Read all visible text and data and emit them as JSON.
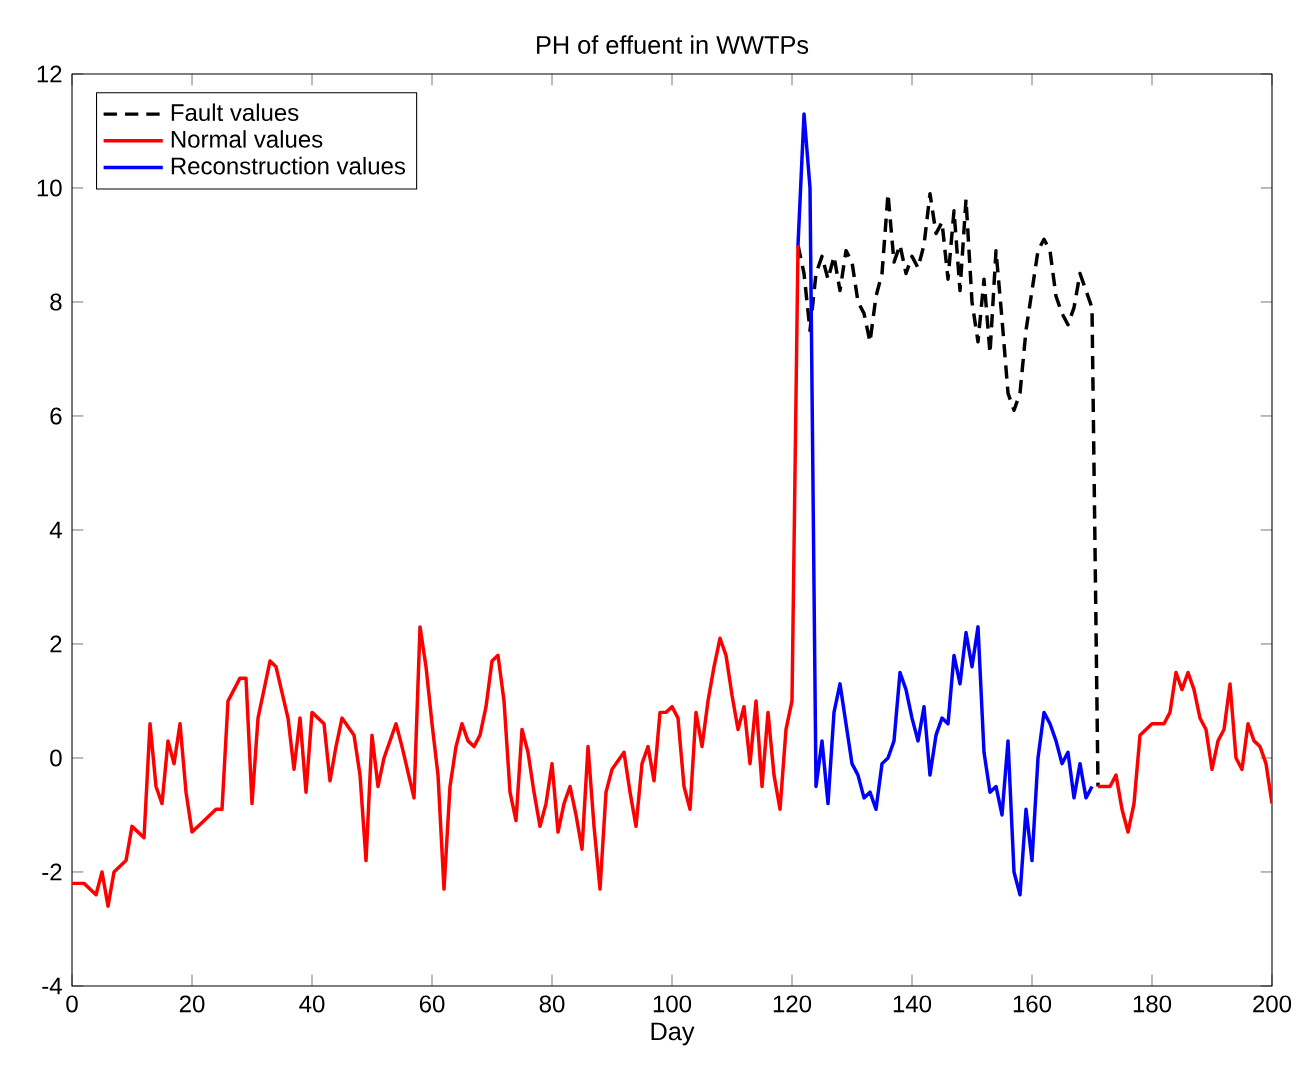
{
  "chart_data": {
    "type": "line",
    "title": "PH of effuent in WWTPs",
    "xlabel": "Day",
    "xlim": [
      0,
      200
    ],
    "xticks": [
      0,
      20,
      40,
      60,
      80,
      100,
      120,
      140,
      160,
      180,
      200
    ],
    "ylim": [
      -4,
      12
    ],
    "yticks": [
      -4,
      -2,
      0,
      2,
      4,
      6,
      8,
      10,
      12
    ],
    "grid": false,
    "legend": "top left",
    "series": [
      {
        "name": "Fault values",
        "color": "#000000",
        "line_style": "dashed",
        "x": [
          121,
          122,
          123,
          124,
          125,
          126,
          127,
          128,
          129,
          130,
          131,
          132,
          133,
          134,
          135,
          136,
          137,
          138,
          139,
          140,
          141,
          142,
          143,
          144,
          145,
          146,
          147,
          148,
          149,
          150,
          151,
          152,
          153,
          154,
          155,
          156,
          157,
          158,
          159,
          160,
          161,
          162,
          163,
          164,
          165,
          166,
          167,
          168,
          169,
          170,
          171
        ],
        "values": [
          9.0,
          8.5,
          7.5,
          8.5,
          8.8,
          8.4,
          8.8,
          8.2,
          8.9,
          8.7,
          8.0,
          7.8,
          7.3,
          8.1,
          8.5,
          9.9,
          8.7,
          9.0,
          8.5,
          8.8,
          8.6,
          9.0,
          9.9,
          9.2,
          9.4,
          8.4,
          9.6,
          8.2,
          9.8,
          8.0,
          7.3,
          8.4,
          7.1,
          8.9,
          7.7,
          6.4,
          6.1,
          6.4,
          7.5,
          8.2,
          8.9,
          9.1,
          8.9,
          8.1,
          7.8,
          7.6,
          7.9,
          8.5,
          8.2,
          7.9,
          -0.5
        ]
      },
      {
        "name": "Normal values",
        "color": "#ff0000",
        "line_style": "solid",
        "x": [
          0,
          2,
          4,
          5,
          6,
          7,
          9,
          10,
          12,
          13,
          14,
          15,
          16,
          17,
          18,
          19,
          20,
          22,
          24,
          25,
          26,
          28,
          29,
          30,
          31,
          33,
          34,
          36,
          37,
          38,
          39,
          40,
          42,
          43,
          44,
          45,
          47,
          48,
          49,
          50,
          51,
          52,
          54,
          55,
          57,
          58,
          59,
          60,
          61,
          62,
          63,
          64,
          65,
          66,
          67,
          68,
          69,
          70,
          71,
          72,
          73,
          74,
          75,
          76,
          77,
          78,
          79,
          80,
          81,
          82,
          83,
          84,
          85,
          86,
          87,
          88,
          89,
          90,
          92,
          93,
          94,
          95,
          96,
          97,
          98,
          99,
          100,
          101,
          102,
          103,
          104,
          105,
          106,
          107,
          108,
          109,
          110,
          111,
          112,
          113,
          114,
          115,
          116,
          117,
          118,
          119,
          120,
          121,
          146,
          171,
          173,
          174,
          175,
          176,
          177,
          178,
          180,
          182,
          183,
          184,
          185,
          186,
          187,
          188,
          189,
          190,
          191,
          192,
          193,
          194,
          195,
          196,
          197,
          198,
          199,
          200
        ],
        "values": [
          -2.2,
          -2.2,
          -2.4,
          -2.0,
          -2.6,
          -2.0,
          -1.8,
          -1.2,
          -1.4,
          0.6,
          -0.5,
          -0.8,
          0.3,
          -0.1,
          0.6,
          -0.6,
          -1.3,
          -1.1,
          -0.9,
          -0.9,
          1.0,
          1.4,
          1.4,
          -0.8,
          0.7,
          1.7,
          1.6,
          0.7,
          -0.2,
          0.7,
          -0.6,
          0.8,
          0.6,
          -0.4,
          0.2,
          0.7,
          0.4,
          -0.3,
          -1.8,
          0.4,
          -0.5,
          0.0,
          0.6,
          0.2,
          -0.7,
          2.3,
          1.6,
          0.6,
          -0.3,
          -2.3,
          -0.5,
          0.2,
          0.6,
          0.3,
          0.2,
          0.4,
          0.9,
          1.7,
          1.8,
          1.0,
          -0.6,
          -1.1,
          0.5,
          0.1,
          -0.6,
          -1.2,
          -0.8,
          -0.1,
          -1.3,
          -0.8,
          -0.5,
          -1.0,
          -1.6,
          0.2,
          -1.2,
          -2.3,
          -0.6,
          -0.2,
          0.1,
          -0.6,
          -1.2,
          -0.1,
          0.2,
          -0.4,
          0.8,
          0.8,
          0.9,
          0.7,
          -0.5,
          -0.9,
          0.8,
          0.2,
          1.0,
          1.6,
          2.1,
          1.8,
          1.1,
          0.5,
          0.9,
          -0.1,
          1.0,
          -0.5,
          0.8,
          -0.3,
          -0.9,
          0.5,
          1.0,
          9.0,
          null,
          -0.5,
          -0.5,
          -0.3,
          -0.9,
          -1.3,
          -0.8,
          0.4,
          0.6,
          0.6,
          0.8,
          1.5,
          1.2,
          1.5,
          1.2,
          0.7,
          0.5,
          -0.2,
          0.3,
          0.5,
          1.3,
          0.0,
          -0.2,
          0.6,
          0.3,
          0.2,
          -0.1,
          -0.8
        ]
      },
      {
        "name": "Reconstruction values",
        "color": "#0000ff",
        "line_style": "solid",
        "x": [
          121,
          122,
          123,
          124,
          125,
          126,
          127,
          128,
          129,
          130,
          131,
          132,
          133,
          134,
          135,
          136,
          137,
          138,
          139,
          140,
          141,
          142,
          143,
          144,
          145,
          146,
          147,
          148,
          149,
          150,
          151,
          152,
          153,
          154,
          155,
          156,
          157,
          158,
          159,
          160,
          161,
          162,
          163,
          164,
          165,
          166,
          167,
          168,
          169,
          170
        ],
        "values": [
          9.0,
          11.3,
          10.0,
          -0.5,
          0.3,
          -0.8,
          0.8,
          1.3,
          0.6,
          -0.1,
          -0.3,
          -0.7,
          -0.6,
          -0.9,
          -0.1,
          0.0,
          0.3,
          1.5,
          1.2,
          0.7,
          0.3,
          0.9,
          -0.3,
          0.4,
          0.7,
          0.6,
          1.8,
          1.3,
          2.2,
          1.6,
          2.3,
          0.1,
          -0.6,
          -0.5,
          -1.0,
          0.3,
          -2.0,
          -2.4,
          -0.9,
          -1.8,
          0.0,
          0.8,
          0.6,
          0.3,
          -0.1,
          0.1,
          -0.7,
          -0.1,
          -0.7,
          -0.5
        ]
      }
    ]
  }
}
